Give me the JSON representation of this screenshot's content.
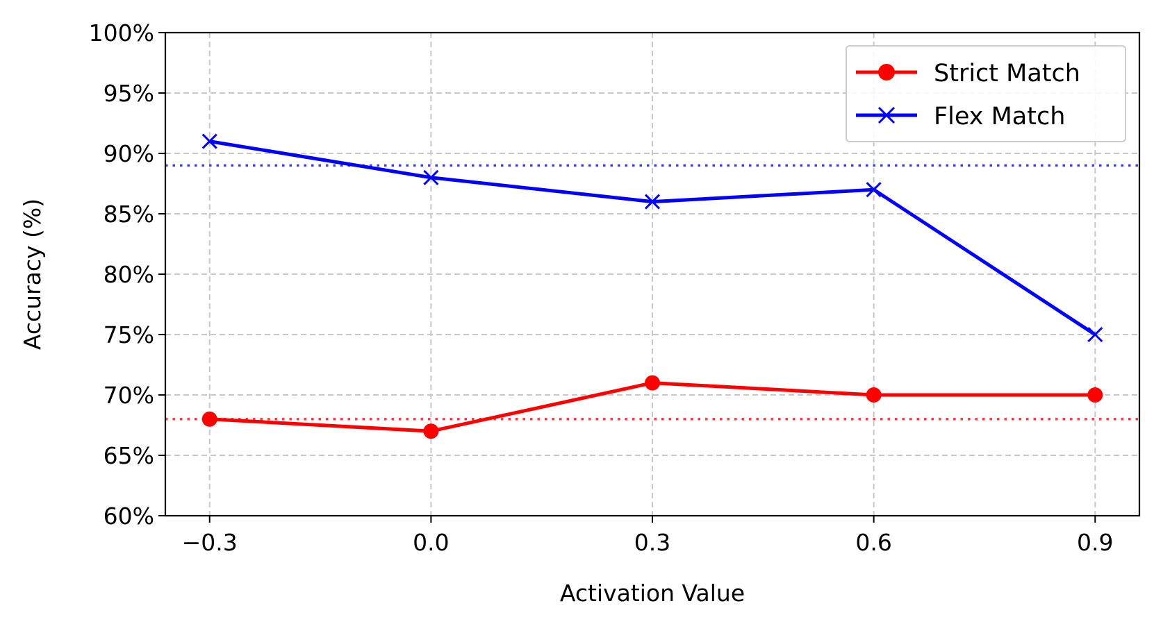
{
  "chart_data": {
    "type": "line",
    "title": "",
    "xlabel": "Activation Value",
    "ylabel": "Accuracy (%)",
    "x": [
      -0.3,
      0.0,
      0.3,
      0.6,
      0.9
    ],
    "x_tick_labels": [
      "−0.3",
      "0.0",
      "0.3",
      "0.6",
      "0.9"
    ],
    "xlim": [
      -0.36,
      0.96
    ],
    "ylim": [
      60,
      100
    ],
    "y_ticks": [
      60,
      65,
      70,
      75,
      80,
      85,
      90,
      95,
      100
    ],
    "y_tick_labels": [
      "60%",
      "65%",
      "70%",
      "75%",
      "80%",
      "85%",
      "90%",
      "95%",
      "100%"
    ],
    "grid": true,
    "legend_position": "top-right",
    "series": [
      {
        "name": "Strict Match",
        "values": [
          68,
          67,
          71,
          70,
          70
        ],
        "color": "#ff0000",
        "marker": "circle",
        "baseline": 68
      },
      {
        "name": "Flex Match",
        "values": [
          91,
          88,
          86,
          87,
          75
        ],
        "color": "#0000ff",
        "marker": "x",
        "baseline": 89
      }
    ]
  }
}
